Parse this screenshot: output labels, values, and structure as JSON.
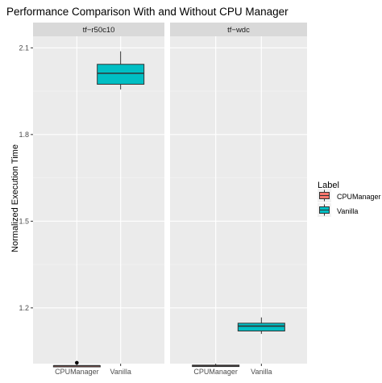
{
  "chart_data": {
    "type": "box",
    "title": "Performance Comparison With and Without CPU Manager",
    "ylabel": "Normalized Execution Time",
    "xlabel": "",
    "ylim": [
      1.007,
      2.14
    ],
    "yticks": [
      1.2,
      1.5,
      1.8,
      2.1
    ],
    "ytick_labels": [
      "1.2",
      "1.5",
      "1.8",
      "2.1"
    ],
    "categories": [
      "CPUManager",
      "Vanilla"
    ],
    "grid": true,
    "legend": {
      "title": "Label",
      "position": "right",
      "entries": [
        {
          "name": "CPUManager",
          "color": "#F8766D"
        },
        {
          "name": "Vanilla",
          "color": "#00BFC4"
        }
      ]
    },
    "panels": [
      {
        "name": "tf−r50c10",
        "boxes": [
          {
            "category": "CPUManager",
            "whisker_low": 1.0,
            "q1": 1.0,
            "median": 1.0,
            "q3": 1.0,
            "whisker_high": 1.0,
            "outliers": [
              1.01
            ]
          },
          {
            "category": "Vanilla",
            "whisker_low": 1.956,
            "q1": 1.974,
            "median": 2.012,
            "q3": 2.043,
            "whisker_high": 2.088,
            "outliers": []
          }
        ]
      },
      {
        "name": "tf−wdc",
        "boxes": [
          {
            "category": "CPUManager",
            "whisker_low": 0.997,
            "q1": 0.997,
            "median": 0.999,
            "q3": 1.002,
            "whisker_high": 1.002,
            "outliers": []
          },
          {
            "category": "Vanilla",
            "whisker_low": 1.11,
            "q1": 1.12,
            "median": 1.137,
            "q3": 1.147,
            "whisker_high": 1.167,
            "outliers": []
          }
        ]
      }
    ]
  }
}
